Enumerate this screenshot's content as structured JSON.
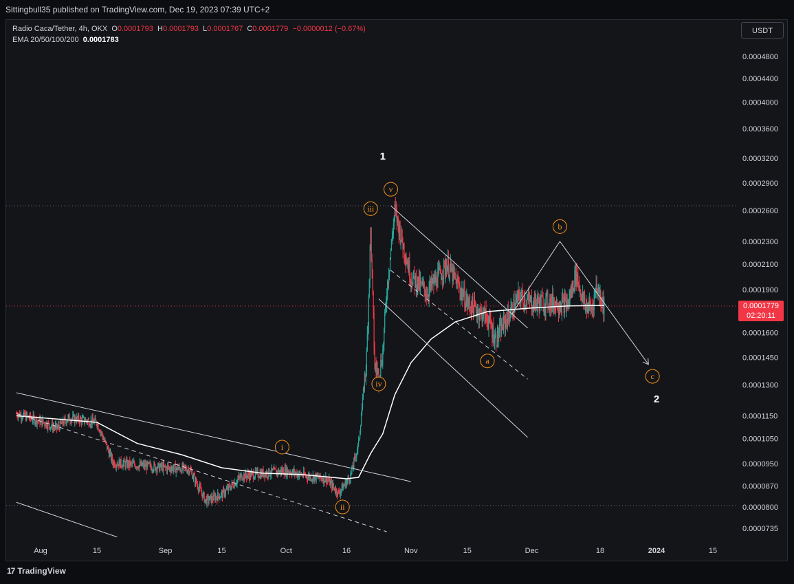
{
  "header": {
    "published": "Sittingbull35 published on TradingView.com, Dec 19, 2023 07:39 UTC+2"
  },
  "legend": {
    "symbol": "Radio Caca/Tether, 4h, OKX",
    "o_label": "O",
    "o_value": "0.0001793",
    "h_label": "H",
    "h_value": "0.0001793",
    "l_label": "L",
    "l_value": "0.0001767",
    "c_label": "C",
    "c_value": "0.0001779",
    "change": "−0.0000012 (−0.67%)",
    "ema_label": "EMA 20/50/100/200",
    "ema_value": "0.0001783"
  },
  "currency_button": "USDT",
  "price_tag": {
    "price": "0.0001779",
    "countdown": "02:20:11"
  },
  "footer": {
    "brand": "TradingView"
  },
  "colors": {
    "up": "#26a69a",
    "down": "#f23645",
    "wave_label": "#f7931a",
    "background": "#141519"
  },
  "chart_data": {
    "type": "candlestick",
    "timeframe": "4h",
    "y_scale": "log",
    "y_ticks": [
      "0.0004800",
      "0.0004400",
      "0.0004000",
      "0.0003600",
      "0.0003200",
      "0.0002900",
      "0.0002600",
      "0.0002300",
      "0.0002100",
      "0.0001900",
      "0.0001600",
      "0.0001450",
      "0.0001300",
      "0.0001150",
      "0.0001050",
      "0.0000950",
      "0.0000870",
      "0.0000800",
      "0.0000735"
    ],
    "y_tick_values": [
      0.00048,
      0.00044,
      0.0004,
      0.00036,
      0.00032,
      0.00029,
      0.00026,
      0.00023,
      0.00021,
      0.00019,
      0.00016,
      0.000145,
      0.00013,
      0.000115,
      0.000105,
      9.5e-05,
      8.7e-05,
      8e-05,
      7.35e-05
    ],
    "x_ticks": [
      "Aug",
      "15",
      "Sep",
      "15",
      "Oct",
      "16",
      "Nov",
      "15",
      "Dec",
      "18",
      "2024",
      "15"
    ],
    "x_tick_dates": [
      "2023-08-01",
      "2023-08-15",
      "2023-09-01",
      "2023-09-15",
      "2023-10-01",
      "2023-10-16",
      "2023-11-01",
      "2023-11-15",
      "2023-12-01",
      "2023-12-18",
      "2024-01-01",
      "2024-01-15"
    ],
    "price_path": [
      [
        "2023-07-26",
        0.000116
      ],
      [
        "2023-08-01",
        0.0001125
      ],
      [
        "2023-08-05",
        0.0001095
      ],
      [
        "2023-08-08",
        0.000114
      ],
      [
        "2023-08-15",
        0.000112
      ],
      [
        "2023-08-19",
        9.55e-05
      ],
      [
        "2023-08-25",
        9.45e-05
      ],
      [
        "2023-09-01",
        9.35e-05
      ],
      [
        "2023-09-07",
        9.3e-05
      ],
      [
        "2023-09-11",
        8.2e-05
      ],
      [
        "2023-09-15",
        8.4e-05
      ],
      [
        "2023-09-20",
        9.05e-05
      ],
      [
        "2023-10-01",
        9.25e-05
      ],
      [
        "2023-10-06",
        9.05e-05
      ],
      [
        "2023-10-11",
        8.95e-05
      ],
      [
        "2023-10-14",
        8.45e-05
      ],
      [
        "2023-10-17",
        9.05e-05
      ],
      [
        "2023-10-19",
        0.000103
      ],
      [
        "2023-10-21",
        0.000145
      ],
      [
        "2023-10-22",
        0.00024
      ],
      [
        "2023-10-23",
        0.00014
      ],
      [
        "2023-10-24",
        0.000135
      ],
      [
        "2023-10-25",
        0.000148
      ],
      [
        "2023-10-26",
        0.00019
      ],
      [
        "2023-10-28",
        0.00026
      ],
      [
        "2023-11-01",
        0.0002
      ],
      [
        "2023-11-05",
        0.000188
      ],
      [
        "2023-11-10",
        0.00021
      ],
      [
        "2023-11-15",
        0.00018
      ],
      [
        "2023-11-20",
        0.00017
      ],
      [
        "2023-11-22",
        0.000156
      ],
      [
        "2023-11-25",
        0.00017
      ],
      [
        "2023-11-28",
        0.000185
      ],
      [
        "2023-12-01",
        0.00018
      ],
      [
        "2023-12-05",
        0.000181
      ],
      [
        "2023-12-10",
        0.000179
      ],
      [
        "2023-12-12",
        0.000203
      ],
      [
        "2023-12-14",
        0.000179
      ],
      [
        "2023-12-16",
        0.000176
      ],
      [
        "2023-12-17",
        0.000193
      ],
      [
        "2023-12-19",
        0.0001779
      ]
    ],
    "ema_path": [
      [
        "2023-07-26",
        0.000115
      ],
      [
        "2023-08-15",
        0.000112
      ],
      [
        "2023-08-25",
        0.000103
      ],
      [
        "2023-09-05",
        9.85e-05
      ],
      [
        "2023-09-15",
        9.35e-05
      ],
      [
        "2023-09-25",
        9.15e-05
      ],
      [
        "2023-10-05",
        9.1e-05
      ],
      [
        "2023-10-16",
        8.95e-05
      ],
      [
        "2023-10-19",
        9e-05
      ],
      [
        "2023-10-22",
        9.9e-05
      ],
      [
        "2023-10-25",
        0.000107
      ],
      [
        "2023-10-28",
        0.000125
      ],
      [
        "2023-11-01",
        0.000142
      ],
      [
        "2023-11-06",
        0.000156
      ],
      [
        "2023-11-12",
        0.000167
      ],
      [
        "2023-11-20",
        0.000174
      ],
      [
        "2023-12-01",
        0.0001765
      ],
      [
        "2023-12-10",
        0.000178
      ],
      [
        "2023-12-19",
        0.0001783
      ]
    ],
    "horizontal_levels": [
      0.000265,
      8.05e-05
    ],
    "wave_labels": [
      {
        "text": "1",
        "date": "2023-10-25",
        "price": 0.000323,
        "style": "major"
      },
      {
        "text": "v",
        "date": "2023-10-27",
        "price": 0.000283,
        "style": "minor"
      },
      {
        "text": "iii",
        "date": "2023-10-22",
        "price": 0.000262,
        "style": "minor"
      },
      {
        "text": "iv",
        "date": "2023-10-24",
        "price": 0.0001305,
        "style": "minor"
      },
      {
        "text": "i",
        "date": "2023-09-30",
        "price": 0.0001015,
        "style": "minor"
      },
      {
        "text": "ii",
        "date": "2023-10-15",
        "price": 8e-05,
        "style": "minor"
      },
      {
        "text": "a",
        "date": "2023-11-20",
        "price": 0.000143,
        "style": "minor"
      },
      {
        "text": "b",
        "date": "2023-12-08",
        "price": 0.000244,
        "style": "minor"
      },
      {
        "text": "c",
        "date": "2023-12-31",
        "price": 0.0001345,
        "style": "minor"
      },
      {
        "text": "2",
        "date": "2024-01-01",
        "price": 0.000123,
        "style": "major"
      }
    ],
    "drawings": [
      {
        "kind": "line",
        "from": [
          "2023-10-27",
          0.000265
        ],
        "to": [
          "2023-11-30",
          0.000163
        ]
      },
      {
        "kind": "dashed",
        "from": [
          "2023-10-27",
          0.000205
        ],
        "to": [
          "2023-11-30",
          0.000133
        ]
      },
      {
        "kind": "line",
        "from": [
          "2023-10-24",
          0.000183
        ],
        "to": [
          "2023-11-30",
          0.0001055
        ]
      },
      {
        "kind": "line",
        "from": [
          "2023-11-26",
          0.000172
        ],
        "to": [
          "2023-12-08",
          0.00023
        ]
      },
      {
        "kind": "line",
        "from": [
          "2023-12-08",
          0.00023
        ],
        "to": [
          "2023-12-19",
          0.00018
        ]
      },
      {
        "kind": "arrow",
        "from": [
          "2023-12-19",
          0.00018
        ],
        "to": [
          "2023-12-30",
          0.000141
        ]
      },
      {
        "kind": "line",
        "from": [
          "2023-07-26",
          0.000126
        ],
        "to": [
          "2023-11-01",
          8.85e-05
        ]
      },
      {
        "kind": "line",
        "from": [
          "2023-07-26",
          8.15e-05
        ],
        "to": [
          "2023-08-20",
          7.1e-05
        ]
      },
      {
        "kind": "dashed",
        "from": [
          "2023-07-26",
          0.000116
        ],
        "to": [
          "2023-10-26",
          7.25e-05
        ]
      }
    ]
  }
}
